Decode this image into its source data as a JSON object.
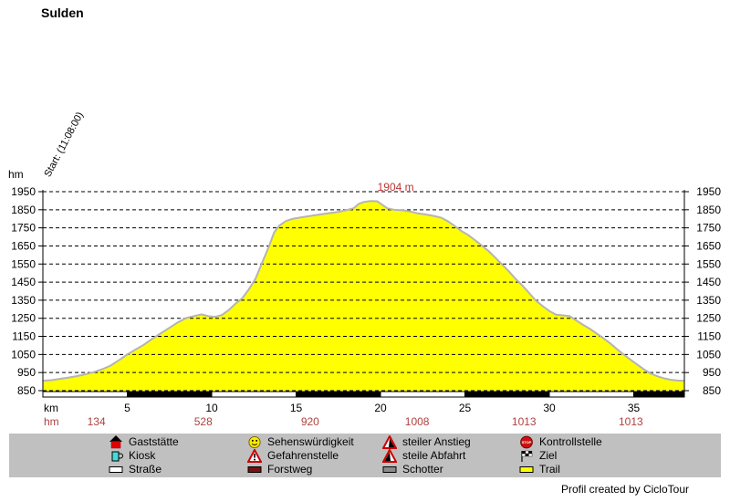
{
  "title": "Sulden",
  "start_label": "Start: (11:08:00)",
  "left_axis_unit": "hm",
  "footer": "Profil created by CicloTour",
  "colors": {
    "profile_fill": "#ffff00",
    "profile_stroke": "#b4b4b4",
    "grid": "#000000",
    "red_text": "#b04040",
    "peak_text": "#bc3434",
    "legend_bg": "#c0c0c0",
    "surface_black": "#000000",
    "surface_white": "#ffffff"
  },
  "chart_data": {
    "type": "area",
    "title": "Sulden",
    "xlabel": "km",
    "ylabel": "hm",
    "ylim": [
      850,
      1950
    ],
    "xlim": [
      0,
      38
    ],
    "grid": "dashed horizontal",
    "yticks": [
      1950,
      1850,
      1750,
      1650,
      1550,
      1450,
      1350,
      1250,
      1150,
      1050,
      950,
      850
    ],
    "xticks": [
      5,
      10,
      15,
      20,
      25,
      30,
      35
    ],
    "x_row_label": "km",
    "climb_row_label": "hm",
    "peak_label": "1904 m",
    "peak_label_km": 20.9,
    "climb_values": [
      {
        "km": 3.17,
        "value": "134"
      },
      {
        "km": 9.5,
        "value": "528"
      },
      {
        "km": 15.83,
        "value": "920"
      },
      {
        "km": 22.17,
        "value": "1008"
      },
      {
        "km": 28.5,
        "value": "1013"
      },
      {
        "km": 34.83,
        "value": "1013"
      }
    ],
    "surface_segments": [
      {
        "from": 0,
        "to": 5,
        "color": "#ffffff"
      },
      {
        "from": 5,
        "to": 10,
        "color": "#000000"
      },
      {
        "from": 10,
        "to": 15,
        "color": "#ffffff"
      },
      {
        "from": 15,
        "to": 20,
        "color": "#000000"
      },
      {
        "from": 20,
        "to": 25,
        "color": "#ffffff"
      },
      {
        "from": 25,
        "to": 30,
        "color": "#000000"
      },
      {
        "from": 30,
        "to": 35,
        "color": "#ffffff"
      },
      {
        "from": 35,
        "to": 38,
        "color": "#000000"
      }
    ],
    "profile": [
      [
        0,
        905
      ],
      [
        0.5,
        908
      ],
      [
        1,
        915
      ],
      [
        1.5,
        922
      ],
      [
        2,
        930
      ],
      [
        2.5,
        940
      ],
      [
        3,
        952
      ],
      [
        3.5,
        968
      ],
      [
        4,
        988
      ],
      [
        4.5,
        1018
      ],
      [
        5,
        1050
      ],
      [
        5.5,
        1078
      ],
      [
        6,
        1105
      ],
      [
        6.5,
        1138
      ],
      [
        7,
        1168
      ],
      [
        7.5,
        1198
      ],
      [
        8,
        1228
      ],
      [
        8.5,
        1252
      ],
      [
        9,
        1263
      ],
      [
        9.4,
        1272
      ],
      [
        9.8,
        1262
      ],
      [
        10.2,
        1258
      ],
      [
        10.6,
        1268
      ],
      [
        11,
        1295
      ],
      [
        11.4,
        1330
      ],
      [
        11.8,
        1360
      ],
      [
        12.2,
        1410
      ],
      [
        12.6,
        1470
      ],
      [
        13,
        1560
      ],
      [
        13.4,
        1650
      ],
      [
        13.7,
        1725
      ],
      [
        14,
        1762
      ],
      [
        14.4,
        1788
      ],
      [
        14.8,
        1800
      ],
      [
        15.3,
        1808
      ],
      [
        16,
        1818
      ],
      [
        16.5,
        1825
      ],
      [
        17,
        1832
      ],
      [
        17.5,
        1838
      ],
      [
        18,
        1848
      ],
      [
        18.4,
        1858
      ],
      [
        18.7,
        1882
      ],
      [
        19,
        1893
      ],
      [
        19.4,
        1898
      ],
      [
        19.8,
        1897
      ],
      [
        20.1,
        1878
      ],
      [
        20.4,
        1858
      ],
      [
        20.8,
        1850
      ],
      [
        21.3,
        1847
      ],
      [
        21.8,
        1840
      ],
      [
        22.2,
        1830
      ],
      [
        22.7,
        1824
      ],
      [
        23.2,
        1815
      ],
      [
        23.6,
        1806
      ],
      [
        24,
        1786
      ],
      [
        24.4,
        1760
      ],
      [
        24.8,
        1732
      ],
      [
        25.2,
        1710
      ],
      [
        25.6,
        1682
      ],
      [
        26,
        1652
      ],
      [
        26.4,
        1622
      ],
      [
        26.8,
        1585
      ],
      [
        27.2,
        1548
      ],
      [
        27.6,
        1510
      ],
      [
        28,
        1468
      ],
      [
        28.4,
        1432
      ],
      [
        28.8,
        1390
      ],
      [
        29.2,
        1348
      ],
      [
        29.6,
        1318
      ],
      [
        30,
        1290
      ],
      [
        30.4,
        1270
      ],
      [
        30.8,
        1266
      ],
      [
        31.2,
        1262
      ],
      [
        31.6,
        1238
      ],
      [
        32,
        1214
      ],
      [
        32.4,
        1192
      ],
      [
        32.8,
        1166
      ],
      [
        33.2,
        1140
      ],
      [
        33.6,
        1112
      ],
      [
        34,
        1080
      ],
      [
        34.4,
        1050
      ],
      [
        34.8,
        1022
      ],
      [
        35.2,
        995
      ],
      [
        35.6,
        968
      ],
      [
        36,
        945
      ],
      [
        36.4,
        930
      ],
      [
        36.8,
        918
      ],
      [
        37.2,
        910
      ],
      [
        37.6,
        906
      ],
      [
        38,
        904
      ]
    ]
  },
  "legend": {
    "items": [
      {
        "icon": "house-icon",
        "label": "Gaststätte"
      },
      {
        "icon": "mug-icon",
        "label": "Kiosk"
      },
      {
        "icon": "road-swatch-icon",
        "label": "Straße"
      },
      {
        "icon": "smiley-icon",
        "label": "Sehenswürdigkeit"
      },
      {
        "icon": "warning-triangle-icon",
        "label": "Gefahrenstelle"
      },
      {
        "icon": "forest-road-swatch-icon",
        "label": "Forstweg"
      },
      {
        "icon": "steep-climb-icon",
        "label": "steiler Anstieg"
      },
      {
        "icon": "steep-descent-icon",
        "label": "steile Abfahrt"
      },
      {
        "icon": "gravel-swatch-icon",
        "label": "Schotter"
      },
      {
        "icon": "stop-sign-icon",
        "label": "Kontrollstelle"
      },
      {
        "icon": "finish-flag-icon",
        "label": "Ziel"
      },
      {
        "icon": "trail-swatch-icon",
        "label": "Trail"
      }
    ]
  }
}
